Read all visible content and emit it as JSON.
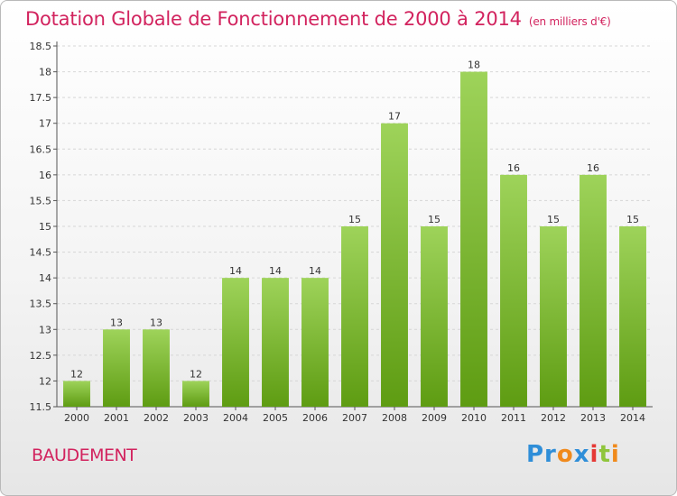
{
  "header": {
    "title": "Dotation Globale de Fonctionnement de 2000 à 2014",
    "unit": "(en milliers d'€)"
  },
  "footer": {
    "commune": "BAUDEMENT",
    "logo_parts": [
      "Pr",
      "o",
      "x",
      "i",
      "t",
      "i"
    ]
  },
  "colors": {
    "title": "#d2235e",
    "bar_top": "#9ed35a",
    "bar_bottom": "#5e9c12"
  },
  "chart_data": {
    "type": "bar",
    "categories": [
      "2000",
      "2001",
      "2002",
      "2003",
      "2004",
      "2005",
      "2006",
      "2007",
      "2008",
      "2009",
      "2010",
      "2011",
      "2012",
      "2013",
      "2014"
    ],
    "values": [
      12,
      13,
      13,
      12,
      14,
      14,
      14,
      15,
      17,
      15,
      18,
      16,
      15,
      16,
      15
    ],
    "value_labels": [
      "12",
      "13",
      "13",
      "12",
      "14",
      "14",
      "14",
      "15",
      "17",
      "15",
      "18",
      "16",
      "15",
      "16",
      "15"
    ],
    "title": "Dotation Globale de Fonctionnement de 2000 à 2014",
    "xlabel": "",
    "ylabel": "",
    "ylim": [
      11.5,
      18.5
    ],
    "yticks": [
      "11.5",
      "12",
      "12.5",
      "13",
      "13.5",
      "14",
      "14.5",
      "15",
      "15.5",
      "16",
      "16.5",
      "17",
      "17.5",
      "18",
      "18.5"
    ],
    "grid": true
  }
}
